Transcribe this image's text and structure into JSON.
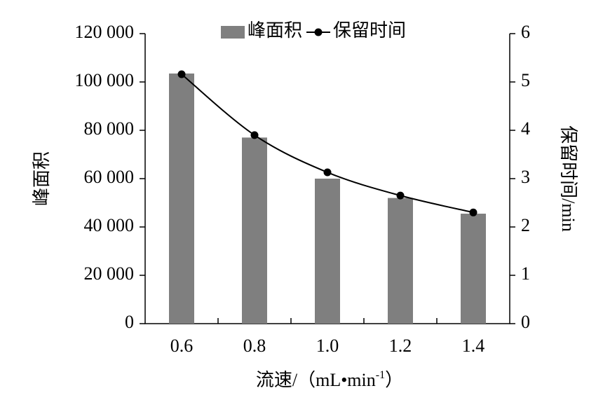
{
  "chart_data": {
    "type": "bar_line",
    "categories": [
      "0.6",
      "0.8",
      "1.0",
      "1.2",
      "1.4"
    ],
    "series": [
      {
        "name": "峰面积",
        "type": "bar",
        "color": "#7f7f7f",
        "values": [
          103500,
          77000,
          60000,
          52000,
          45500
        ]
      },
      {
        "name": "保留时间",
        "type": "line",
        "axis": "y2",
        "color": "#000000",
        "values": [
          5.16,
          3.9,
          3.13,
          2.65,
          2.3
        ]
      }
    ],
    "ylim": [
      0,
      120000
    ],
    "yticks": [
      0,
      {
        "value": 20000,
        "label": "20 000"
      },
      {
        "value": 40000,
        "label": "40 000"
      },
      {
        "value": 60000,
        "label": "60 000"
      },
      {
        "value": 80000,
        "label": "80 000"
      },
      {
        "value": 100000,
        "label": "100 000"
      },
      {
        "value": 120000,
        "label": "120 000"
      }
    ],
    "y2lim": [
      0,
      6
    ],
    "y2ticks": [
      0,
      1,
      2,
      3,
      4,
      5,
      6
    ],
    "y_label": "峰面积",
    "y2_label": "保留时间/min",
    "x_label": [
      "流速/（mL•min",
      "-1",
      "）"
    ],
    "legend": "top"
  }
}
